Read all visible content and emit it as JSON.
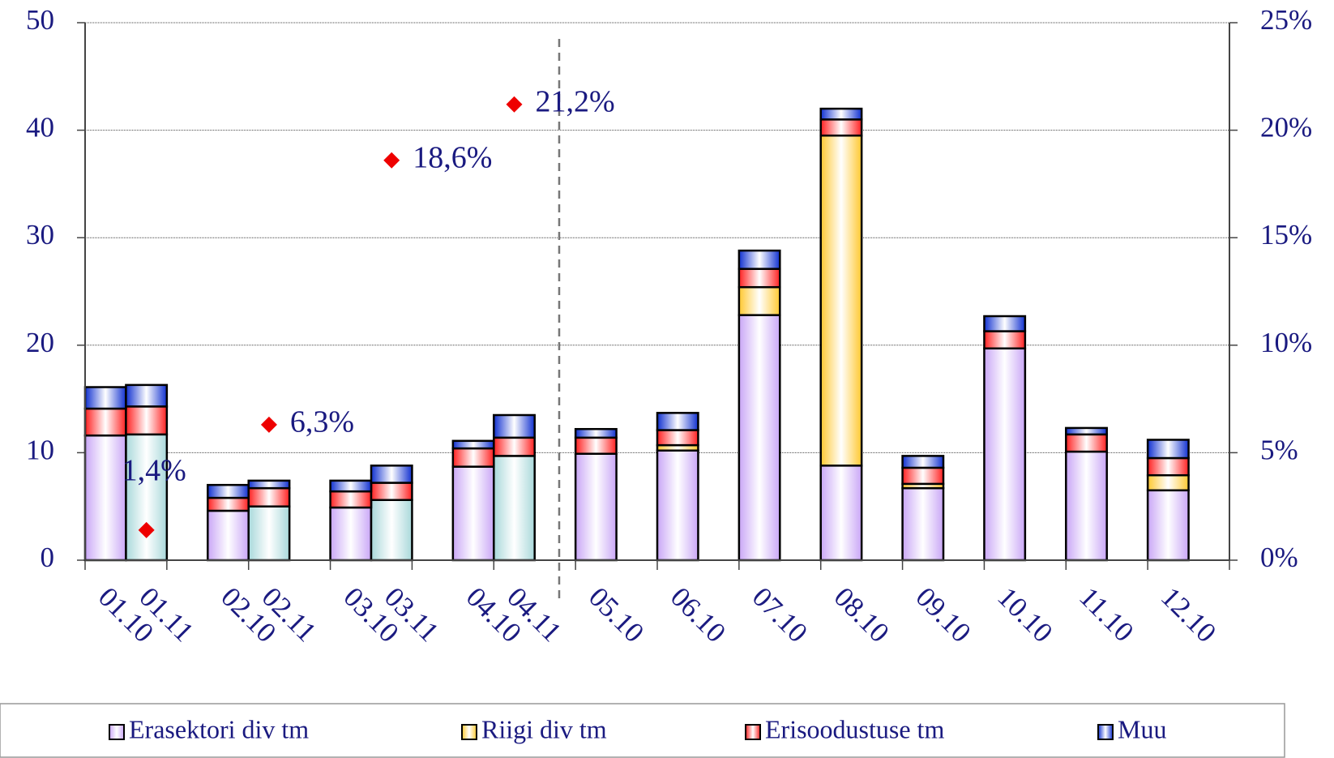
{
  "chart_data": {
    "type": "bar",
    "stacked": true,
    "categories": [
      "01.10",
      "01.11",
      "02.10",
      "02.11",
      "03.10",
      "03.11",
      "04.10",
      "04.11",
      "05.10",
      "06.10",
      "07.10",
      "08.10",
      "09.10",
      "10.10",
      "11.10",
      "12.10"
    ],
    "series": [
      {
        "name": "Erasektori div tm",
        "color": "#c9a6f6",
        "point_colors": [
          "#c9a6f6",
          "#a8d8da",
          "#c9a6f6",
          "#a8d8da",
          "#c9a6f6",
          "#a8d8da",
          "#c9a6f6",
          "#a8d8da",
          "#c9a6f6",
          "#c9a6f6",
          "#c9a6f6",
          "#c9a6f6",
          "#c9a6f6",
          "#c9a6f6",
          "#c9a6f6",
          "#c9a6f6"
        ],
        "values": [
          11.6,
          11.7,
          4.6,
          5.0,
          4.9,
          5.6,
          8.7,
          9.7,
          9.9,
          10.2,
          22.8,
          8.8,
          6.7,
          19.7,
          10.1,
          6.5
        ]
      },
      {
        "name": "Riigi div tm",
        "color": "#ffc830",
        "values": [
          0,
          0,
          0,
          0,
          0,
          0,
          0,
          0,
          0,
          0.5,
          2.6,
          30.7,
          0.4,
          0,
          0,
          1.4
        ]
      },
      {
        "name": "Erisoodustuse tm",
        "color": "#ff2020",
        "values": [
          2.5,
          2.6,
          1.2,
          1.7,
          1.5,
          1.6,
          1.7,
          1.7,
          1.5,
          1.4,
          1.7,
          1.5,
          1.5,
          1.6,
          1.6,
          1.6
        ]
      },
      {
        "name": "Muu",
        "color": "#1030d0",
        "values": [
          2.0,
          2.0,
          1.2,
          0.7,
          1.0,
          1.6,
          0.7,
          2.1,
          0.8,
          1.6,
          1.7,
          1.0,
          1.1,
          1.4,
          0.6,
          1.7
        ]
      },
      {
        "type": "scatter",
        "axis": "y2",
        "color": "#ee0000",
        "values": [
          null,
          1.4,
          null,
          6.3,
          null,
          18.6,
          null,
          21.2,
          null,
          null,
          null,
          null,
          null,
          null,
          null,
          null
        ],
        "value_labels": [
          null,
          "1,4%",
          null,
          "6,3%",
          null,
          "18,6%",
          null,
          "21,2%",
          null,
          null,
          null,
          null,
          null,
          null,
          null,
          null
        ]
      }
    ],
    "ylim": [
      0,
      50
    ],
    "yticks": [
      0,
      10,
      20,
      30,
      40,
      50
    ],
    "y2lim": [
      0,
      25
    ],
    "y2ticks": [
      {
        "value": 0,
        "label": "0%"
      },
      {
        "value": 5,
        "label": "5%"
      },
      {
        "value": 10,
        "label": "10%"
      },
      {
        "value": 15,
        "label": "15%"
      },
      {
        "value": 20,
        "label": "20%"
      },
      {
        "value": 25,
        "label": "25%"
      }
    ],
    "grid": true,
    "legend": "bottom"
  }
}
